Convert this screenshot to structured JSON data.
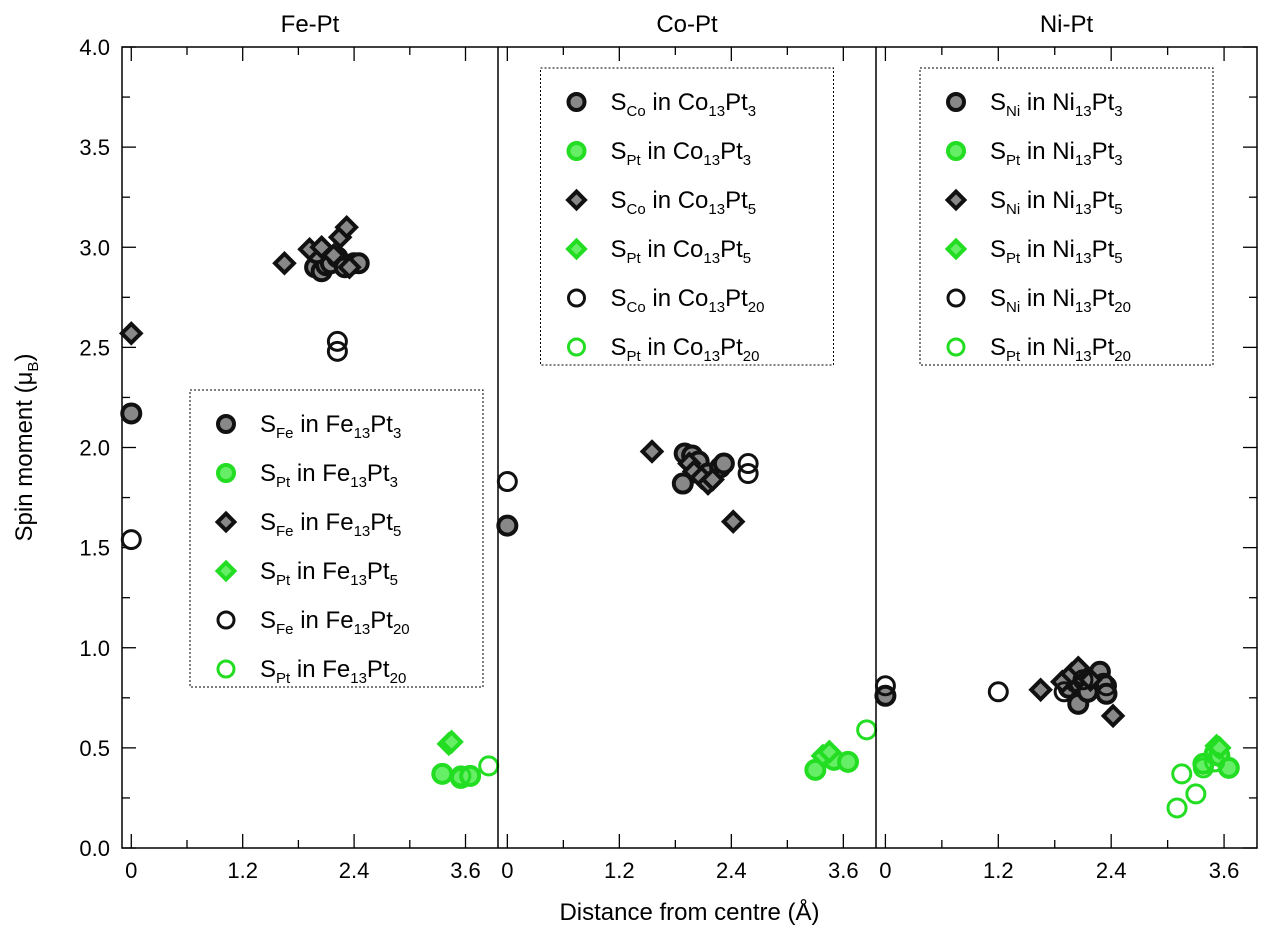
{
  "chart_data": {
    "type": "scatter",
    "xlabel": "Distance from centre (Å)",
    "ylabel_main": "Spin moment (μ",
    "ylabel_sub": "B",
    "ylabel_close": ")",
    "ylim": [
      0.0,
      4.0
    ],
    "yticks": [
      "0.0",
      "0.5",
      "1.0",
      "1.5",
      "2.0",
      "2.5",
      "3.0",
      "3.5",
      "4.0"
    ],
    "xlim": [
      -0.1,
      3.95
    ],
    "xticks": [
      "0",
      "1.2",
      "2.4",
      "3.6"
    ],
    "colors": {
      "black": "#111111",
      "green": "#22dd22",
      "fill_grey": "#888888",
      "fill_green": "#66ee66"
    },
    "panels": [
      {
        "title": "Fe-Pt",
        "legend_position": "lower-middle",
        "legend": [
          {
            "marker": "filled-circle",
            "color": "black",
            "pre": "S",
            "sub1": "Fe",
            "mid": " in Fe",
            "sub2": "13",
            "post": "Pt",
            "sub3": "3"
          },
          {
            "marker": "filled-circle",
            "color": "green",
            "pre": "S",
            "sub1": "Pt",
            "mid": " in Fe",
            "sub2": "13",
            "post": "Pt",
            "sub3": "3"
          },
          {
            "marker": "filled-diamond",
            "color": "black",
            "pre": "S",
            "sub1": "Fe",
            "mid": " in Fe",
            "sub2": "13",
            "post": "Pt",
            "sub3": "5"
          },
          {
            "marker": "filled-diamond",
            "color": "green",
            "pre": "S",
            "sub1": "Pt",
            "mid": " in Fe",
            "sub2": "13",
            "post": "Pt",
            "sub3": "5"
          },
          {
            "marker": "open-circle",
            "color": "black",
            "pre": "S",
            "sub1": "Fe",
            "mid": " in Fe",
            "sub2": "13",
            "post": "Pt",
            "sub3": "20"
          },
          {
            "marker": "open-circle",
            "color": "green",
            "pre": "S",
            "sub1": "Pt",
            "mid": " in Fe",
            "sub2": "13",
            "post": "Pt",
            "sub3": "20"
          }
        ],
        "series": [
          {
            "marker": "filled-circle",
            "color": "black",
            "points": [
              [
                0.0,
                2.17
              ],
              [
                1.98,
                2.9
              ],
              [
                2.05,
                2.88
              ],
              [
                2.1,
                2.91
              ],
              [
                2.15,
                2.92
              ],
              [
                2.22,
                2.95
              ],
              [
                2.3,
                2.9
              ],
              [
                2.4,
                2.92
              ],
              [
                2.45,
                2.92
              ],
              [
                2.0,
                2.97
              ]
            ]
          },
          {
            "marker": "filled-circle",
            "color": "green",
            "points": [
              [
                3.35,
                0.37
              ],
              [
                3.55,
                0.35
              ],
              [
                3.65,
                0.36
              ]
            ]
          },
          {
            "marker": "filled-diamond",
            "color": "black",
            "points": [
              [
                0.0,
                2.57
              ],
              [
                1.65,
                2.92
              ],
              [
                1.92,
                2.99
              ],
              [
                2.05,
                3.0
              ],
              [
                2.18,
                2.96
              ],
              [
                2.25,
                3.05
              ],
              [
                2.32,
                3.1
              ],
              [
                2.35,
                2.9
              ]
            ]
          },
          {
            "marker": "filled-diamond",
            "color": "green",
            "points": [
              [
                3.42,
                0.52
              ],
              [
                3.45,
                0.53
              ]
            ]
          },
          {
            "marker": "open-circle",
            "color": "black",
            "points": [
              [
                0.0,
                1.54
              ],
              [
                2.22,
                2.53
              ],
              [
                2.22,
                2.48
              ]
            ]
          },
          {
            "marker": "open-circle",
            "color": "green",
            "points": [
              [
                3.55,
                0.36
              ],
              [
                3.85,
                0.41
              ]
            ]
          }
        ]
      },
      {
        "title": "Co-Pt",
        "legend_position": "top-middle",
        "legend": [
          {
            "marker": "filled-circle",
            "color": "black",
            "pre": "S",
            "sub1": "Co",
            "mid": " in Co",
            "sub2": "13",
            "post": "Pt",
            "sub3": "3"
          },
          {
            "marker": "filled-circle",
            "color": "green",
            "pre": "S",
            "sub1": "Pt",
            "mid": " in Co",
            "sub2": "13",
            "post": "Pt",
            "sub3": "3"
          },
          {
            "marker": "filled-diamond",
            "color": "black",
            "pre": "S",
            "sub1": "Co",
            "mid": " in Co",
            "sub2": "13",
            "post": "Pt",
            "sub3": "5"
          },
          {
            "marker": "filled-diamond",
            "color": "green",
            "pre": "S",
            "sub1": "Pt",
            "mid": " in Co",
            "sub2": "13",
            "post": "Pt",
            "sub3": "5"
          },
          {
            "marker": "open-circle",
            "color": "black",
            "pre": "S",
            "sub1": "Co",
            "mid": " in Co",
            "sub2": "13",
            "post": "Pt",
            "sub3": "20"
          },
          {
            "marker": "open-circle",
            "color": "green",
            "pre": "S",
            "sub1": "Pt",
            "mid": " in Co",
            "sub2": "13",
            "post": "Pt",
            "sub3": "20"
          }
        ],
        "series": [
          {
            "marker": "filled-circle",
            "color": "black",
            "points": [
              [
                0.0,
                1.61
              ],
              [
                1.88,
                1.82
              ],
              [
                1.9,
                1.97
              ],
              [
                1.98,
                1.96
              ],
              [
                2.05,
                1.93
              ],
              [
                2.15,
                1.87
              ],
              [
                2.28,
                1.9
              ],
              [
                2.32,
                1.92
              ]
            ]
          },
          {
            "marker": "filled-circle",
            "color": "green",
            "points": [
              [
                3.3,
                0.39
              ],
              [
                3.5,
                0.44
              ],
              [
                3.65,
                0.43
              ]
            ]
          },
          {
            "marker": "filled-diamond",
            "color": "black",
            "points": [
              [
                1.55,
                1.98
              ],
              [
                1.95,
                1.92
              ],
              [
                2.0,
                1.88
              ],
              [
                2.08,
                1.85
              ],
              [
                2.15,
                1.82
              ],
              [
                2.2,
                1.84
              ],
              [
                2.42,
                1.63
              ]
            ]
          },
          {
            "marker": "filled-diamond",
            "color": "green",
            "points": [
              [
                3.38,
                0.46
              ],
              [
                3.45,
                0.48
              ]
            ]
          },
          {
            "marker": "open-circle",
            "color": "black",
            "points": [
              [
                0.0,
                1.83
              ],
              [
                2.58,
                1.92
              ],
              [
                2.58,
                1.87
              ]
            ]
          },
          {
            "marker": "open-circle",
            "color": "green",
            "points": [
              [
                3.85,
                0.59
              ]
            ]
          }
        ]
      },
      {
        "title": "Ni-Pt",
        "legend_position": "top-middle",
        "legend": [
          {
            "marker": "filled-circle",
            "color": "black",
            "pre": "S",
            "sub1": "Ni",
            "mid": " in Ni",
            "sub2": "13",
            "post": "Pt",
            "sub3": "3"
          },
          {
            "marker": "filled-circle",
            "color": "green",
            "pre": "S",
            "sub1": "Pt",
            "mid": " in Ni",
            "sub2": "13",
            "post": "Pt",
            "sub3": "3"
          },
          {
            "marker": "filled-diamond",
            "color": "black",
            "pre": "S",
            "sub1": "Ni",
            "mid": " in Ni",
            "sub2": "13",
            "post": "Pt",
            "sub3": "5"
          },
          {
            "marker": "filled-diamond",
            "color": "green",
            "pre": "S",
            "sub1": "Pt",
            "mid": " in Ni",
            "sub2": "13",
            "post": "Pt",
            "sub3": "5"
          },
          {
            "marker": "open-circle",
            "color": "black",
            "pre": "S",
            "sub1": "Ni",
            "mid": " in Ni",
            "sub2": "13",
            "post": "Pt",
            "sub3": "20"
          },
          {
            "marker": "open-circle",
            "color": "green",
            "pre": "S",
            "sub1": "Pt",
            "mid": " in Ni",
            "sub2": "13",
            "post": "Pt",
            "sub3": "20"
          }
        ],
        "series": [
          {
            "marker": "filled-circle",
            "color": "black",
            "points": [
              [
                0.0,
                0.76
              ],
              [
                1.95,
                0.8
              ],
              [
                2.02,
                0.83
              ],
              [
                2.05,
                0.72
              ],
              [
                2.1,
                0.86
              ],
              [
                2.15,
                0.78
              ],
              [
                2.28,
                0.88
              ],
              [
                2.32,
                0.82
              ],
              [
                2.35,
                0.77
              ]
            ]
          },
          {
            "marker": "filled-circle",
            "color": "green",
            "points": [
              [
                3.38,
                0.42
              ],
              [
                3.5,
                0.47
              ],
              [
                3.55,
                0.46
              ],
              [
                3.65,
                0.4
              ]
            ]
          },
          {
            "marker": "filled-diamond",
            "color": "black",
            "points": [
              [
                1.65,
                0.79
              ],
              [
                1.88,
                0.83
              ],
              [
                1.98,
                0.87
              ],
              [
                2.05,
                0.9
              ],
              [
                2.18,
                0.84
              ],
              [
                2.42,
                0.66
              ]
            ]
          },
          {
            "marker": "filled-diamond",
            "color": "green",
            "points": [
              [
                3.52,
                0.51
              ],
              [
                3.55,
                0.5
              ]
            ]
          },
          {
            "marker": "open-circle",
            "color": "black",
            "points": [
              [
                0.0,
                0.81
              ],
              [
                1.2,
                0.78
              ],
              [
                1.9,
                0.78
              ],
              [
                2.1,
                0.84
              ],
              [
                2.35,
                0.81
              ]
            ]
          },
          {
            "marker": "open-circle",
            "color": "green",
            "points": [
              [
                3.1,
                0.2
              ],
              [
                3.15,
                0.37
              ],
              [
                3.3,
                0.27
              ],
              [
                3.38,
                0.4
              ],
              [
                3.5,
                0.43
              ]
            ]
          }
        ]
      }
    ]
  }
}
